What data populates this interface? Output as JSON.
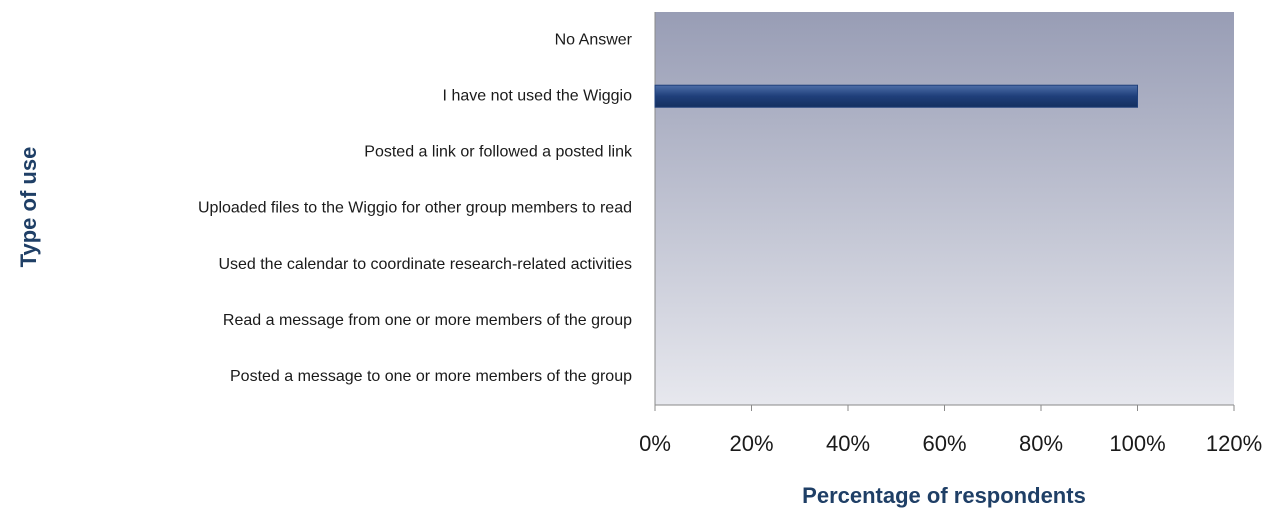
{
  "chart_data": {
    "type": "bar",
    "orientation": "horizontal",
    "categories": [
      "No Answer",
      "I have not used the Wiggio",
      "Posted a link or followed a posted link",
      "Uploaded files to the Wiggio for other group members to read",
      "Used the calendar to coordinate research-related activities",
      "Read a message from one or more members of the group",
      "Posted a message to one or more members of the group"
    ],
    "values": [
      0,
      100,
      0,
      0,
      0,
      0,
      0
    ],
    "color": "#1f3f7a",
    "xlabel": "Percentage of respondents",
    "ylabel": "Type of use",
    "xlim": [
      0,
      120
    ],
    "xticks": [
      {
        "value": 0,
        "label": "0%"
      },
      {
        "value": 20,
        "label": "20%"
      },
      {
        "value": 40,
        "label": "40%"
      },
      {
        "value": 60,
        "label": "60%"
      },
      {
        "value": 80,
        "label": "80%"
      },
      {
        "value": 100,
        "label": "100%"
      },
      {
        "value": 120,
        "label": "120%"
      }
    ]
  }
}
